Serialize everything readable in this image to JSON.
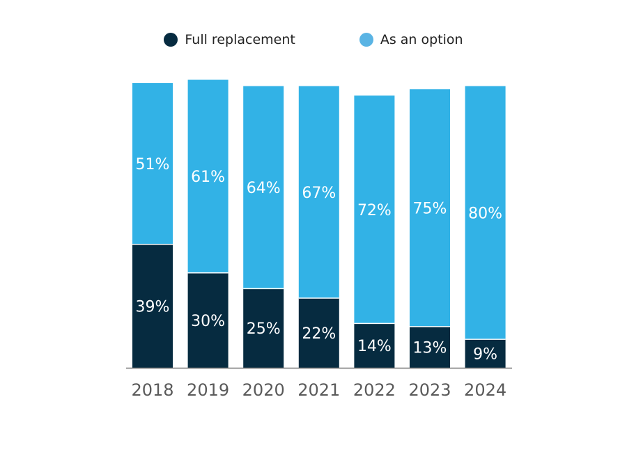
{
  "chart_data": {
    "type": "bar",
    "stacked": true,
    "categories": [
      "2018",
      "2019",
      "2020",
      "2021",
      "2022",
      "2023",
      "2024"
    ],
    "series": [
      {
        "name": "Full replacement",
        "color": "#062b40",
        "values": [
          39,
          30,
          25,
          22,
          14,
          13,
          9
        ]
      },
      {
        "name": "As an option",
        "color": "#32b2e6",
        "values": [
          51,
          61,
          64,
          67,
          72,
          75,
          80
        ]
      }
    ],
    "value_suffix": "%",
    "legend_position": "top-center",
    "ylim": [
      0,
      92
    ],
    "grid": false,
    "title": "",
    "xlabel": "",
    "ylabel": ""
  },
  "legend": {
    "items": [
      {
        "label": "Full replacement",
        "color": "#062b40"
      },
      {
        "label": "As an option",
        "color": "#5ab4e4"
      }
    ]
  }
}
